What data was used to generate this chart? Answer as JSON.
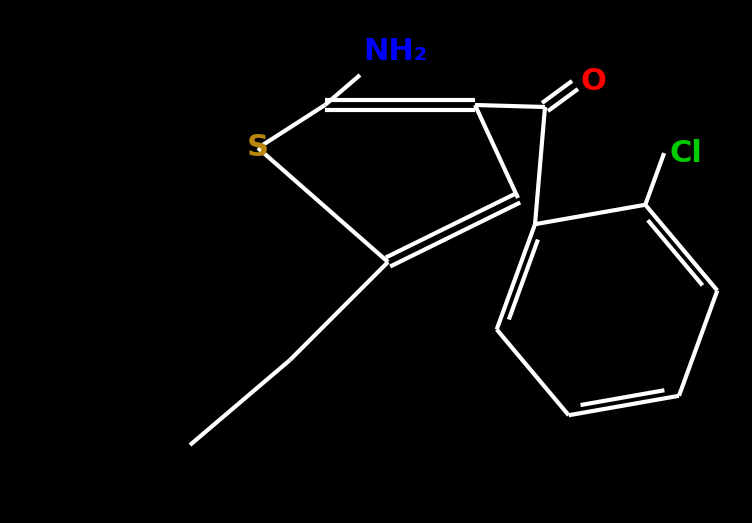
{
  "bg_color": "#000000",
  "bond_color": "#ffffff",
  "bond_width": 3.0,
  "S_color": "#b8860b",
  "O_color": "#ff0000",
  "N_color": "#0000ff",
  "Cl_color": "#00cc00",
  "font_size_atom": 22,
  "NH2_label": "NH₂",
  "S_label": "S",
  "O_label": "O",
  "Cl_label": "Cl",
  "xlim": [
    0,
    10
  ],
  "ylim": [
    0,
    7
  ],
  "figsize": [
    7.52,
    5.23
  ],
  "dpi": 100
}
